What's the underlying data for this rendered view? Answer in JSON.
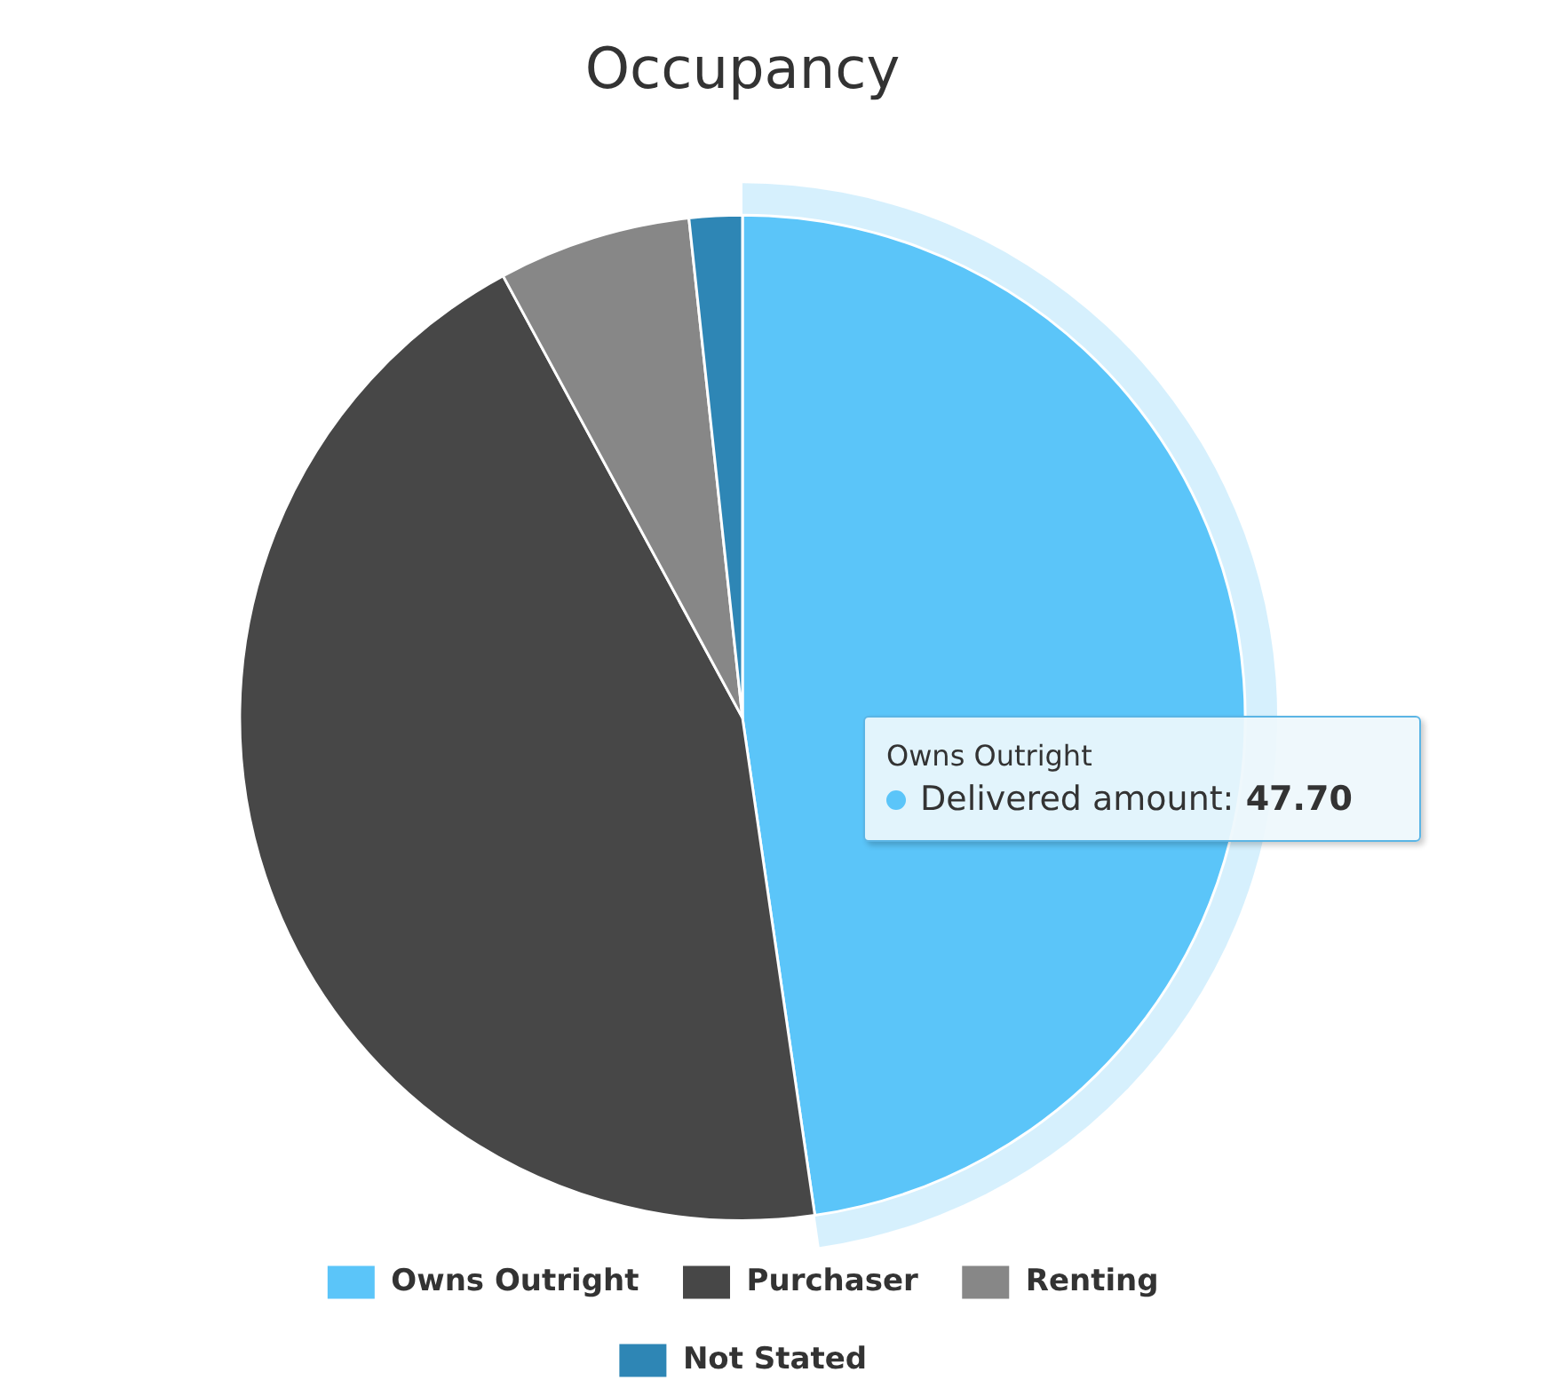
{
  "chart_data": {
    "type": "pie",
    "title": "Occupancy",
    "categories": [
      "Owns Outright",
      "Purchaser",
      "Renting",
      "Not Stated"
    ],
    "colors": [
      "#5bc5f9",
      "#474747",
      "#878787",
      "#2e86b5"
    ],
    "series": [
      {
        "name": "Delivered amount:",
        "values": [
          47.7,
          44.4,
          6.2,
          1.7
        ],
        "value_labels": [
          "47.70",
          null,
          null,
          null
        ]
      }
    ],
    "legend": "bottom"
  }
}
